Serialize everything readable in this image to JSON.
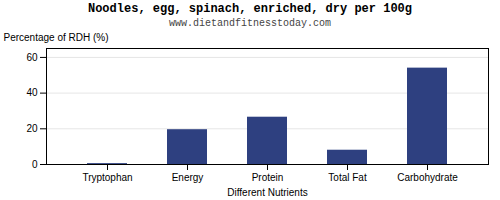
{
  "chart_data": {
    "type": "bar",
    "title": "Noodles, egg, spinach, enriched, dry per 100g",
    "subtitle": "www.dietandfitnesstoday.com",
    "xlabel": "Different Nutrients",
    "ylabel": "Percentage of RDH (%)",
    "categories": [
      "Tryptophan",
      "Energy",
      "Protein",
      "Total Fat",
      "Carbohydrate"
    ],
    "values": [
      0.5,
      19.5,
      26.5,
      8.0,
      54.0
    ],
    "color": "#2e4080",
    "ylim": [
      0,
      65
    ],
    "yticks": [
      0,
      20,
      40,
      60
    ],
    "grid": true
  }
}
